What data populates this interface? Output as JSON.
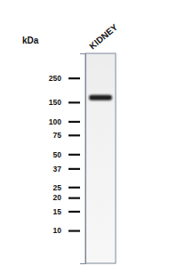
{
  "chart_data": {
    "type": "western_blot",
    "categories": [
      "KIDNEY"
    ],
    "values": [
      165
    ],
    "ylabel": "kDa",
    "log": "y",
    "ylim": [
      5,
      420
    ],
    "yticks": [
      250,
      150,
      100,
      75,
      50,
      37,
      25,
      20,
      15,
      10
    ],
    "color": "#1a1a1a"
  }
}
